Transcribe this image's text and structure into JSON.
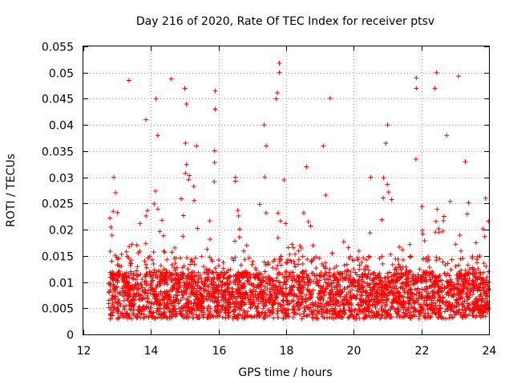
{
  "chart_data": {
    "type": "scatter",
    "title": "Day 216 of 2020, Rate Of TEC Index for receiver ptsv",
    "xlabel": "GPS time / hours",
    "ylabel": "ROTI / TECUs",
    "xlim": [
      12,
      24
    ],
    "ylim": [
      0,
      0.055
    ],
    "x_ticks": [
      "12",
      "14",
      "16",
      "18",
      "20",
      "22",
      "24"
    ],
    "y_ticks": [
      "0",
      "0.005",
      "0.01",
      "0.015",
      "0.02",
      "0.025",
      "0.03",
      "0.035",
      "0.04",
      "0.045",
      "0.05",
      "0.055"
    ],
    "grid": true,
    "marker": "+",
    "series_color": "#ff0000",
    "x_range_of_data": [
      12.75,
      24
    ],
    "baseline_range": [
      0.003,
      0.012
    ],
    "notable_points": [
      {
        "x": 13.35,
        "y": 0.0485
      },
      {
        "x": 14.15,
        "y": 0.045
      },
      {
        "x": 14.6,
        "y": 0.0488
      },
      {
        "x": 15.0,
        "y": 0.047
      },
      {
        "x": 15.9,
        "y": 0.0465
      },
      {
        "x": 17.7,
        "y": 0.045
      },
      {
        "x": 17.8,
        "y": 0.0518
      },
      {
        "x": 19.3,
        "y": 0.0451
      },
      {
        "x": 21.85,
        "y": 0.049
      },
      {
        "x": 22.45,
        "y": 0.05
      },
      {
        "x": 23.1,
        "y": 0.0493
      }
    ],
    "activity_peaks": [
      {
        "x": 12.9,
        "y": 0.03
      },
      {
        "x": 13.85,
        "y": 0.041
      },
      {
        "x": 14.2,
        "y": 0.038
      },
      {
        "x": 15.05,
        "y": 0.044
      },
      {
        "x": 15.35,
        "y": 0.036
      },
      {
        "x": 15.9,
        "y": 0.043
      },
      {
        "x": 16.5,
        "y": 0.03
      },
      {
        "x": 17.35,
        "y": 0.04
      },
      {
        "x": 17.8,
        "y": 0.05
      },
      {
        "x": 18.6,
        "y": 0.032
      },
      {
        "x": 19.1,
        "y": 0.036
      },
      {
        "x": 20.5,
        "y": 0.03
      },
      {
        "x": 21.0,
        "y": 0.04
      },
      {
        "x": 21.85,
        "y": 0.047
      },
      {
        "x": 22.4,
        "y": 0.047
      },
      {
        "x": 22.75,
        "y": 0.038
      },
      {
        "x": 23.3,
        "y": 0.033
      },
      {
        "x": 23.9,
        "y": 0.026
      }
    ]
  }
}
